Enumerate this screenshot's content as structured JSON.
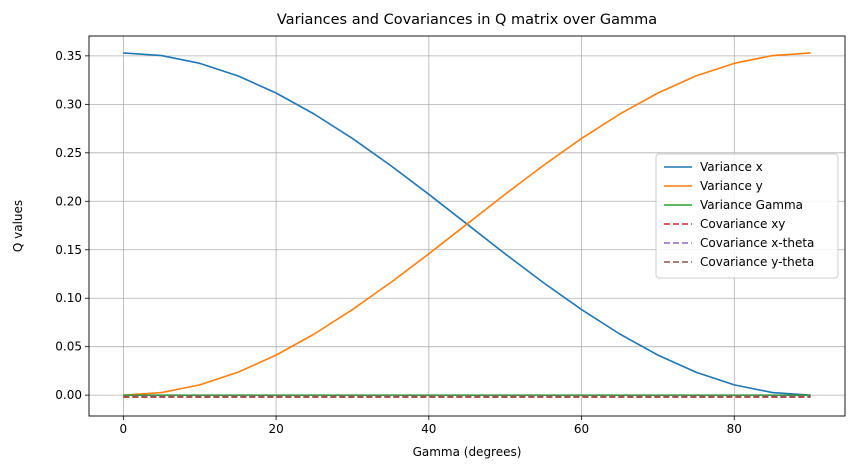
{
  "chart_data": {
    "type": "line",
    "title": "Variances and Covariances in Q matrix over Gamma",
    "xlabel": "Gamma (degrees)",
    "ylabel": "Q values",
    "xlim": [
      -4.5,
      94.5
    ],
    "ylim": [
      -0.0215,
      0.3705
    ],
    "x_ticks": [
      0,
      20,
      40,
      60,
      80
    ],
    "y_ticks": [
      0.0,
      0.05,
      0.1,
      0.15,
      0.2,
      0.25,
      0.3,
      0.35
    ],
    "x_tick_labels": [
      "0",
      "20",
      "40",
      "60",
      "80"
    ],
    "y_tick_labels": [
      "0.00",
      "0.05",
      "0.10",
      "0.15",
      "0.20",
      "0.25",
      "0.30",
      "0.35"
    ],
    "grid": true,
    "legend_position": "center-right",
    "x": [
      0,
      5,
      10,
      15,
      20,
      25,
      30,
      35,
      40,
      45,
      50,
      55,
      60,
      65,
      70,
      75,
      80,
      85,
      90
    ],
    "series": [
      {
        "name": "Variance x",
        "color": "#1f77b4",
        "style": "solid",
        "values": [
          0.353,
          0.3503,
          0.3423,
          0.3294,
          0.3117,
          0.2899,
          0.2648,
          0.2369,
          0.2072,
          0.1765,
          0.1458,
          0.1161,
          0.0883,
          0.0631,
          0.0413,
          0.0236,
          0.0106,
          0.0027,
          0.0
        ]
      },
      {
        "name": "Variance y",
        "color": "#ff7f0e",
        "style": "solid",
        "values": [
          0.0,
          0.0027,
          0.0106,
          0.0236,
          0.0413,
          0.0631,
          0.0883,
          0.1161,
          0.1458,
          0.1765,
          0.2072,
          0.2369,
          0.2648,
          0.2899,
          0.3117,
          0.3294,
          0.3423,
          0.3503,
          0.353
        ]
      },
      {
        "name": "Variance Gamma",
        "color": "#2ca02c",
        "style": "solid",
        "values": [
          0.0,
          0.0,
          0.0,
          0.0,
          0.0,
          0.0,
          0.0,
          0.0,
          0.0,
          0.0,
          0.0,
          0.0,
          0.0,
          0.0,
          0.0,
          0.0,
          0.0,
          0.0,
          0.0
        ]
      },
      {
        "name": "Covariance xy",
        "color": "#d62728",
        "style": "dashed",
        "values": [
          -0.002,
          -0.002,
          -0.002,
          -0.002,
          -0.002,
          -0.002,
          -0.002,
          -0.002,
          -0.002,
          -0.002,
          -0.002,
          -0.002,
          -0.002,
          -0.002,
          -0.002,
          -0.002,
          -0.002,
          -0.002,
          -0.002
        ]
      },
      {
        "name": "Covariance x-theta",
        "color": "#9467bd",
        "style": "dashed",
        "values": [
          -0.001,
          -0.001,
          -0.001,
          -0.001,
          -0.001,
          -0.001,
          -0.001,
          -0.001,
          -0.001,
          -0.001,
          -0.001,
          -0.001,
          -0.001,
          -0.001,
          -0.001,
          -0.001,
          -0.001,
          -0.001,
          -0.001
        ]
      },
      {
        "name": "Covariance y-theta",
        "color": "#8c564b",
        "style": "dashed",
        "values": [
          -0.0015,
          -0.0015,
          -0.0015,
          -0.0015,
          -0.0015,
          -0.0015,
          -0.0015,
          -0.0015,
          -0.0015,
          -0.0015,
          -0.0015,
          -0.0015,
          -0.0015,
          -0.0015,
          -0.0015,
          -0.0015,
          -0.0015,
          -0.0015,
          -0.0015
        ]
      }
    ]
  }
}
